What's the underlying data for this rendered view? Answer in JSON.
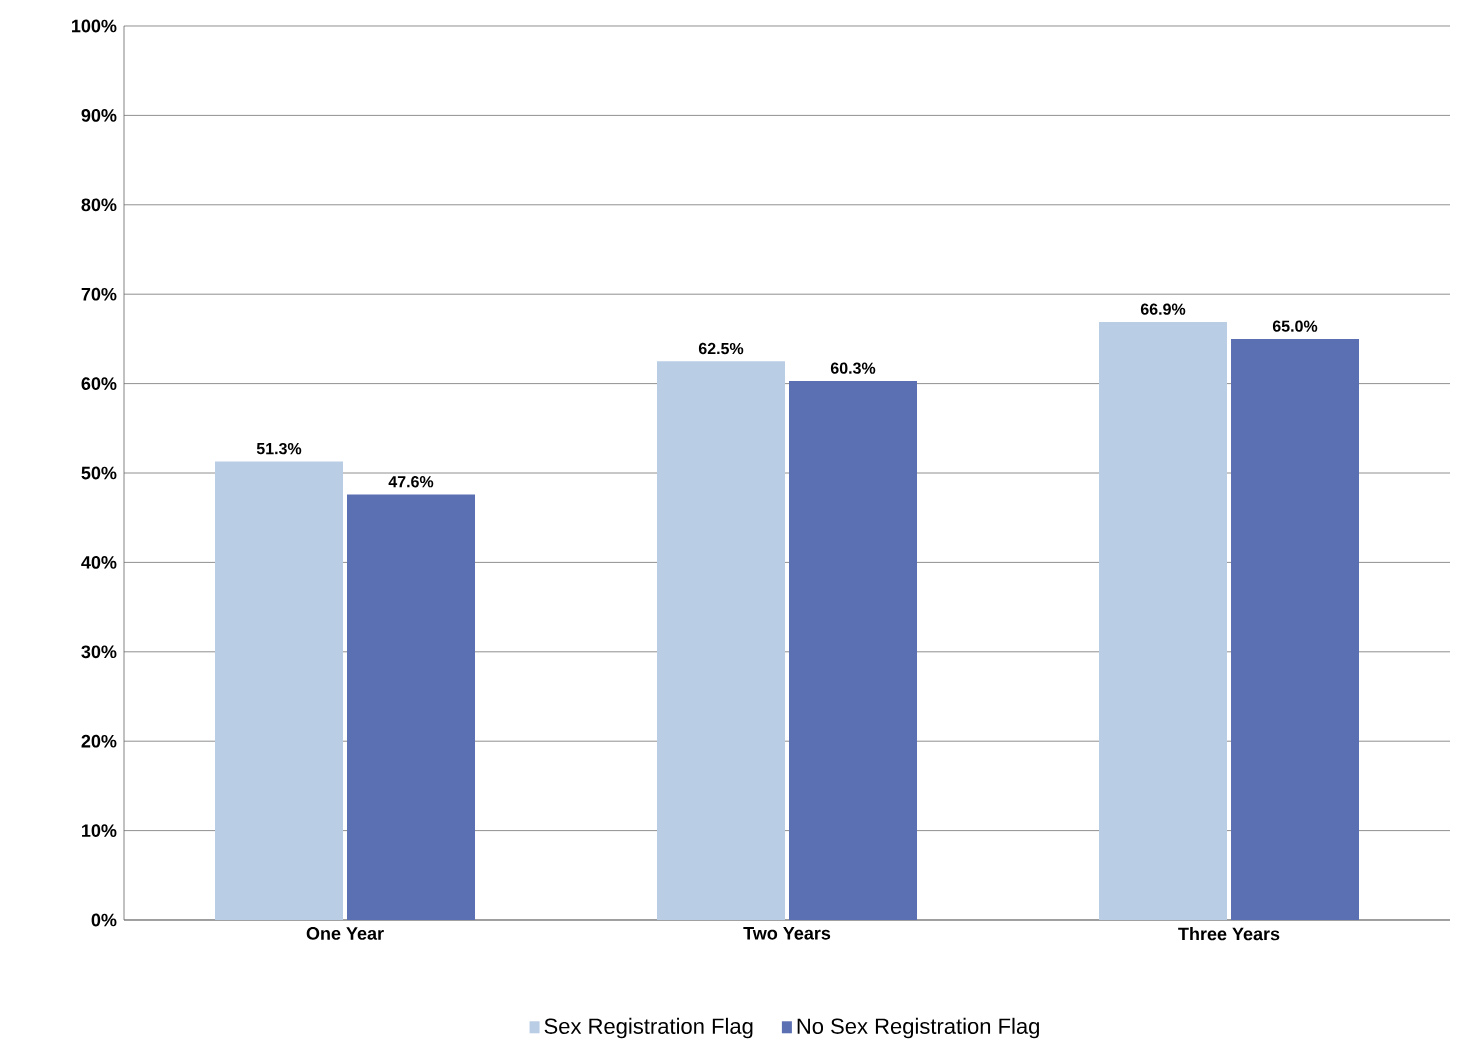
{
  "chart_data": {
    "type": "bar",
    "categories": [
      "One Year",
      "Two Years",
      "Three Years"
    ],
    "series": [
      {
        "name": "Sex Registration Flag",
        "color": "#b9cde5",
        "values": [
          51.3,
          62.5,
          66.9
        ],
        "value_labels": [
          "51.3%",
          "62.5%",
          "66.9%"
        ]
      },
      {
        "name": "No Sex Registration Flag",
        "color": "#5b6fb3",
        "values": [
          47.6,
          60.3,
          65.0
        ],
        "value_labels": [
          "47.6%",
          "60.3%",
          "65.0%"
        ]
      }
    ],
    "ylim": [
      0,
      100
    ],
    "yticks": [
      {
        "value": 0,
        "label": "0%"
      },
      {
        "value": 10,
        "label": "10%"
      },
      {
        "value": 20,
        "label": "20%"
      },
      {
        "value": 30,
        "label": "30%"
      },
      {
        "value": 40,
        "label": "40%"
      },
      {
        "value": 50,
        "label": "50%"
      },
      {
        "value": 60,
        "label": "60%"
      },
      {
        "value": 70,
        "label": "70%"
      },
      {
        "value": 80,
        "label": "80%"
      },
      {
        "value": 90,
        "label": "90%"
      },
      {
        "value": 100,
        "label": "100%"
      }
    ],
    "grid": "y",
    "legend": "bottom"
  }
}
